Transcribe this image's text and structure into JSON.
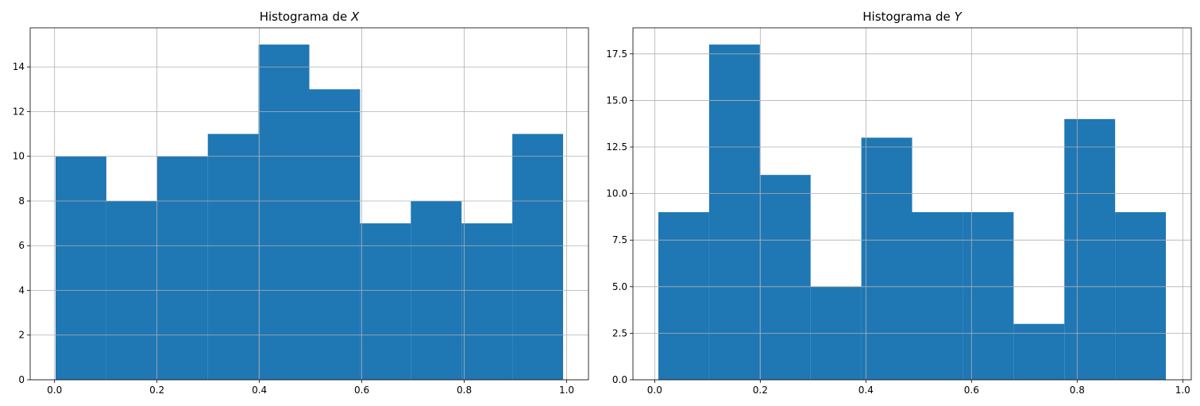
{
  "chart_data": [
    {
      "type": "bar",
      "title_prefix": "Histograma de ",
      "title_var": "X",
      "bar_color": "#1f77b4",
      "bin_edges": [
        0.002,
        0.1011,
        0.2002,
        0.2993,
        0.3984,
        0.4975,
        0.5966,
        0.6957,
        0.7948,
        0.8939,
        0.993
      ],
      "values": [
        10,
        8,
        10,
        11,
        15,
        13,
        7,
        8,
        7,
        11
      ],
      "xlim": [
        -0.0476,
        1.0426
      ],
      "ylim": [
        0,
        15.75
      ],
      "xticks": [
        0.0,
        0.2,
        0.4,
        0.6,
        0.8,
        1.0
      ],
      "xtick_labels": [
        "0.0",
        "0.2",
        "0.4",
        "0.6",
        "0.8",
        "1.0"
      ],
      "yticks": [
        0,
        2,
        4,
        6,
        8,
        10,
        12,
        14
      ],
      "ytick_labels": [
        "0",
        "2",
        "4",
        "6",
        "8",
        "10",
        "12",
        "14"
      ],
      "grid": true
    },
    {
      "type": "bar",
      "title_prefix": "Histograma de ",
      "title_var": "Y",
      "bar_color": "#1f77b4",
      "bin_edges": [
        0.007,
        0.1031,
        0.1992,
        0.2953,
        0.3914,
        0.4875,
        0.5836,
        0.6797,
        0.7758,
        0.8719,
        0.968
      ],
      "values": [
        9,
        18,
        11,
        5,
        13,
        9,
        9,
        3,
        14,
        9
      ],
      "xlim": [
        -0.0411,
        1.0161
      ],
      "ylim": [
        0,
        18.9
      ],
      "xticks": [
        0.0,
        0.2,
        0.4,
        0.6,
        0.8,
        1.0
      ],
      "xtick_labels": [
        "0.0",
        "0.2",
        "0.4",
        "0.6",
        "0.8",
        "1.0"
      ],
      "yticks": [
        0,
        2.5,
        5,
        7.5,
        10,
        12.5,
        15,
        17.5
      ],
      "ytick_labels": [
        "0.0",
        "2.5",
        "5.0",
        "7.5",
        "10.0",
        "12.5",
        "15.0",
        "17.5"
      ],
      "grid": true
    }
  ]
}
